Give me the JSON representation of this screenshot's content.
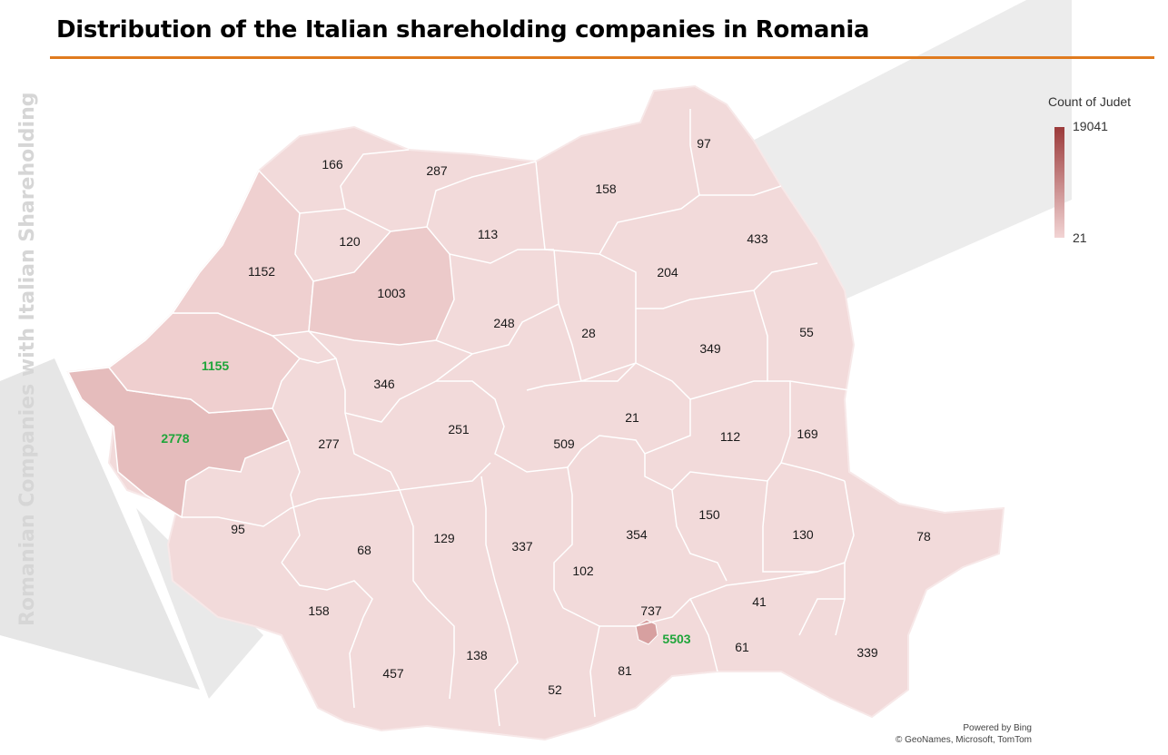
{
  "title": "Distribution of the Italian shareholding companies in Romania",
  "side_title": "Romanian Companies with Italian  Shareholding",
  "legend": {
    "title": "Count of Judet",
    "max": "19041",
    "min": "21",
    "color_max": "#9b3a3a",
    "color_min": "#f2d4d4"
  },
  "credits": {
    "line1": "Powered by Bing",
    "line2": "© GeoNames, Microsoft, TomTom"
  },
  "colors": {
    "accent_rule": "#e07b1f",
    "highlight_text": "#1fa53a",
    "region_fill": "#f2dada",
    "region_border": "#ffffff"
  },
  "counties": [
    {
      "value": "166",
      "highlight": false
    },
    {
      "value": "287",
      "highlight": false
    },
    {
      "value": "97",
      "highlight": false
    },
    {
      "value": "158",
      "highlight": false
    },
    {
      "value": "433",
      "highlight": false
    },
    {
      "value": "120",
      "highlight": false
    },
    {
      "value": "113",
      "highlight": false
    },
    {
      "value": "1152",
      "highlight": false
    },
    {
      "value": "1003",
      "highlight": false
    },
    {
      "value": "204",
      "highlight": false
    },
    {
      "value": "248",
      "highlight": false
    },
    {
      "value": "28",
      "highlight": false
    },
    {
      "value": "55",
      "highlight": false
    },
    {
      "value": "349",
      "highlight": false
    },
    {
      "value": "1155",
      "highlight": true
    },
    {
      "value": "346",
      "highlight": false
    },
    {
      "value": "21",
      "highlight": false
    },
    {
      "value": "251",
      "highlight": false
    },
    {
      "value": "112",
      "highlight": false
    },
    {
      "value": "169",
      "highlight": false
    },
    {
      "value": "2778",
      "highlight": true
    },
    {
      "value": "277",
      "highlight": false
    },
    {
      "value": "509",
      "highlight": false
    },
    {
      "value": "150",
      "highlight": false
    },
    {
      "value": "95",
      "highlight": false
    },
    {
      "value": "68",
      "highlight": false
    },
    {
      "value": "129",
      "highlight": false
    },
    {
      "value": "337",
      "highlight": false
    },
    {
      "value": "354",
      "highlight": false
    },
    {
      "value": "130",
      "highlight": false
    },
    {
      "value": "78",
      "highlight": false
    },
    {
      "value": "102",
      "highlight": false
    },
    {
      "value": "158",
      "highlight": false
    },
    {
      "value": "737",
      "highlight": false
    },
    {
      "value": "41",
      "highlight": false
    },
    {
      "value": "5503",
      "highlight": true
    },
    {
      "value": "61",
      "highlight": false
    },
    {
      "value": "138",
      "highlight": false
    },
    {
      "value": "339",
      "highlight": false
    },
    {
      "value": "457",
      "highlight": false
    },
    {
      "value": "81",
      "highlight": false
    },
    {
      "value": "52",
      "highlight": false
    }
  ]
}
